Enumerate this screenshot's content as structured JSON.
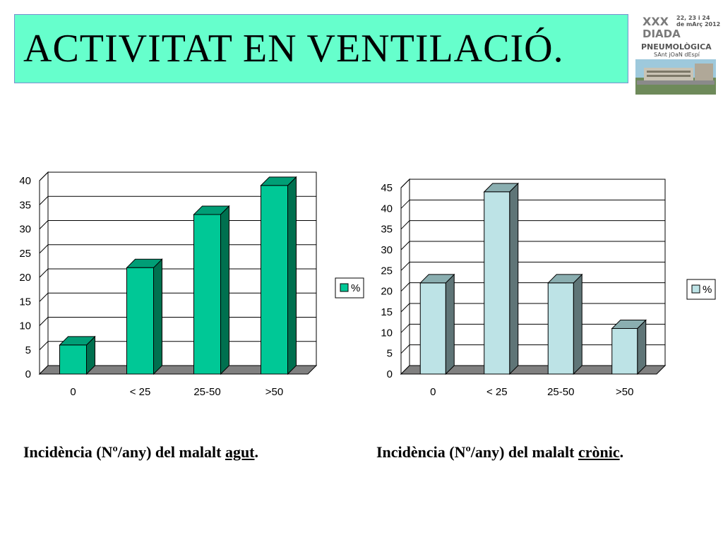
{
  "slide": {
    "title": "ACTIVITAT EN VENTILACIÓ."
  },
  "logo": {
    "line1": "XXX",
    "line2": "DIADA",
    "line3": "PNEUMOLÒGICA",
    "line4": "SAnt jOaN dEspí",
    "date1": "22, 23 i 24",
    "date2": "de mArç 2012"
  },
  "captions": {
    "acute_prefix": "Incidència (Nº/any) del malalt ",
    "acute_word": "agut",
    "acute_suffix": ".",
    "chronic_prefix": "Incidència (Nº/any) del malalt ",
    "chronic_word": "crònic",
    "chronic_suffix": "."
  },
  "chart_data": [
    {
      "type": "bar",
      "categories": [
        "0",
        "< 25",
        "25-50",
        ">50"
      ],
      "series": [
        {
          "name": "%",
          "values": [
            6,
            22,
            33,
            39
          ]
        }
      ],
      "ylim": [
        0,
        40
      ],
      "yticks": [
        0,
        5,
        10,
        15,
        20,
        25,
        30,
        35,
        40
      ],
      "grid": true,
      "legend": "right",
      "colors": {
        "front": "#00c896",
        "side": "#00704f",
        "top": "#009e76",
        "stroke": "#000000",
        "wall": "#ffffff",
        "floor": "#808080"
      }
    },
    {
      "type": "bar",
      "categories": [
        "0",
        "< 25",
        "25-50",
        ">50"
      ],
      "series": [
        {
          "name": "%",
          "values": [
            22,
            44,
            22,
            11
          ]
        }
      ],
      "ylim": [
        0,
        45
      ],
      "yticks": [
        0,
        5,
        10,
        15,
        20,
        25,
        30,
        35,
        40,
        45
      ],
      "grid": true,
      "legend": "right",
      "colors": {
        "front": "#bde3e6",
        "side": "#5f7577",
        "top": "#8aaeb0",
        "stroke": "#000000",
        "wall": "#ffffff",
        "floor": "#808080"
      }
    }
  ]
}
